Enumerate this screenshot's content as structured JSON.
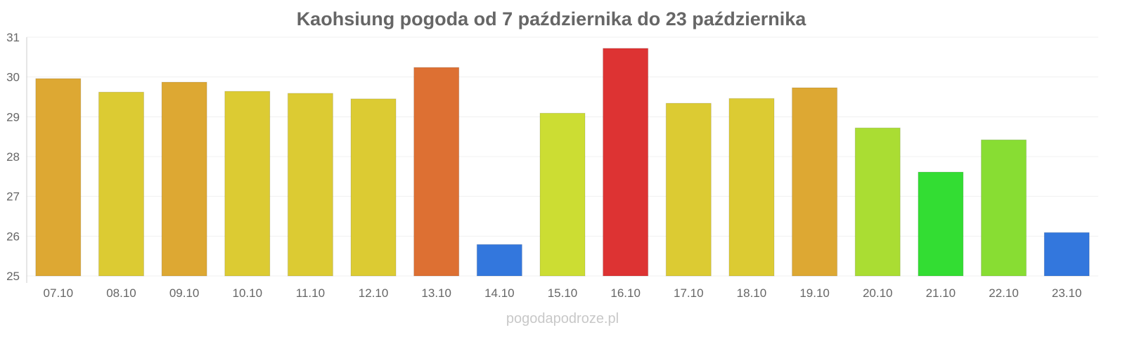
{
  "chart_data": {
    "type": "bar",
    "title": "Kaohsiung pogoda od 7 października do 23 października",
    "xlabel": "",
    "ylabel": "",
    "ylim": [
      25,
      31
    ],
    "yticks": [
      25,
      26,
      27,
      28,
      29,
      30,
      31
    ],
    "grid": true,
    "categories": [
      "07.10",
      "08.10",
      "09.10",
      "10.10",
      "11.10",
      "12.10",
      "13.10",
      "14.10",
      "15.10",
      "16.10",
      "17.10",
      "18.10",
      "19.10",
      "20.10",
      "21.10",
      "22.10",
      "23.10"
    ],
    "values": [
      29.96,
      29.62,
      29.87,
      29.64,
      29.59,
      29.45,
      30.24,
      25.79,
      29.09,
      30.72,
      29.34,
      29.46,
      29.73,
      28.72,
      27.61,
      28.42,
      26.09
    ],
    "colors": [
      "#dda833",
      "#dccb33",
      "#dda833",
      "#dccb33",
      "#dccb33",
      "#dccb33",
      "#dd7033",
      "#3377dd",
      "#ccdd33",
      "#dd3333",
      "#dccb33",
      "#dccb33",
      "#dda833",
      "#aadd33",
      "#33dd33",
      "#88dd33",
      "#3377dd"
    ]
  },
  "watermark": "pogodapodroze.pl"
}
